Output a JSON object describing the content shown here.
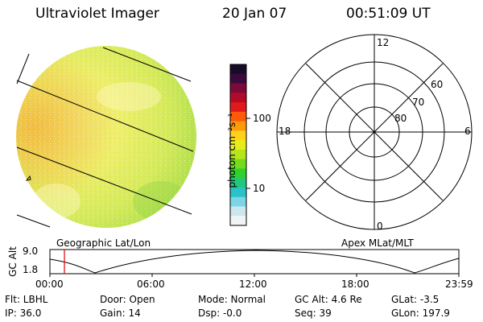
{
  "header": {
    "title": "Ultraviolet Imager",
    "date": "20 Jan 07",
    "time": "00:51:09 UT"
  },
  "colorbar": {
    "unit_label": "photon cm⁻²s⁻¹",
    "ticks": [
      "100",
      "10"
    ],
    "colors": [
      "#1a0a2a",
      "#3a0a3a",
      "#7a0a3a",
      "#b40a2a",
      "#e01a1a",
      "#ff5a0a",
      "#ff9a0a",
      "#ffd21a",
      "#e6ec1a",
      "#b4e61a",
      "#74dc1a",
      "#2ed22a",
      "#22c87a",
      "#2ac2c8",
      "#7ad6e6",
      "#cce8ee",
      "#f0f4f6"
    ]
  },
  "polar": {
    "mlt_labels": {
      "top": "12",
      "left": "18",
      "right": "6",
      "bottom": "0"
    },
    "lat_labels": [
      "60",
      "70",
      "80"
    ]
  },
  "timeline": {
    "left_title": "Geographic Lat/Lon",
    "right_title": "Apex MLat/MLT",
    "axis_label": "GC Alt",
    "y_ticks": [
      "9.0",
      "1.8"
    ],
    "x_ticks": [
      "00:00",
      "06:00",
      "12:00",
      "18:00",
      "23:59"
    ],
    "current_time_fraction": 0.0355
  },
  "status": {
    "flt": "Flt: LBHL",
    "door": "Door: Open",
    "mode": "Mode: Normal",
    "gc_alt": "GC Alt: 4.6 Re",
    "glat": "GLat:  -3.5",
    "ip": "IP: 36.0",
    "gain": "Gain: 14",
    "dsp": "Dsp:   -0.0",
    "seq": "Seq: 39",
    "glon": "GLon: 197.9"
  }
}
